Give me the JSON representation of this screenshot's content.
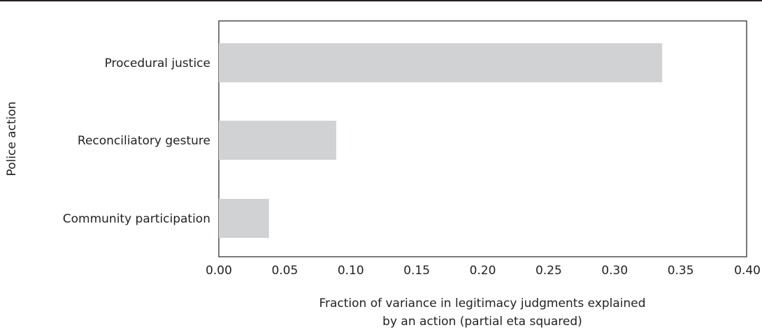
{
  "chart_data": {
    "type": "bar",
    "orientation": "horizontal",
    "categories": [
      "Procedural justice",
      "Reconciliatory gesture",
      "Community participation"
    ],
    "values": [
      0.336,
      0.089,
      0.038
    ],
    "xlabel_lines": [
      "Fraction of variance in legitimacy judgments explained",
      "by an action (partial eta squared)"
    ],
    "ylabel": "Police action",
    "xlim": [
      0,
      0.4
    ],
    "xticks": [
      "0.00",
      "0.05",
      "0.10",
      "0.15",
      "0.20",
      "0.25",
      "0.30",
      "0.35",
      "0.40"
    ],
    "grid": false,
    "colors": {
      "bar": "#d1d2d4",
      "axis": "#231f20",
      "text": "#231f20"
    }
  }
}
